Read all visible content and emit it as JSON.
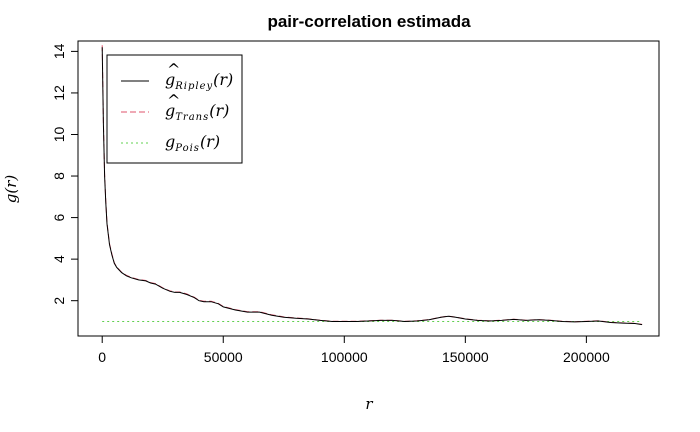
{
  "chart_data": {
    "type": "line",
    "title": "pair-correlation estimada",
    "xlabel": "r",
    "ylabel": "g(r)",
    "xlim": [
      -10000,
      230000
    ],
    "ylim": [
      0.3,
      14.5
    ],
    "x_ticks": [
      0,
      50000,
      100000,
      150000,
      200000
    ],
    "y_ticks": [
      2,
      4,
      6,
      8,
      10,
      12,
      14
    ],
    "x_tick_labels": [
      "0",
      "50000",
      "100000",
      "150000",
      "200000"
    ],
    "y_tick_labels": [
      "2",
      "4",
      "6",
      "8",
      "10",
      "12",
      "14"
    ],
    "grid": false,
    "legend_position": "top-left",
    "legend": [
      {
        "hat": "^",
        "symbol": "g",
        "sub": "Ripley",
        "arg": "(r)"
      },
      {
        "hat": "^",
        "symbol": "g",
        "sub": "Trans",
        "arg": "(r)"
      },
      {
        "hat": "",
        "symbol": "g",
        "sub": "Pois",
        "arg": "(r)"
      }
    ],
    "series": [
      {
        "id": "ripley",
        "color": "#000000",
        "style": "solid",
        "x": [
          0,
          500,
          1000,
          1500,
          2000,
          3000,
          4000,
          5000,
          6000,
          8000,
          10000,
          12000,
          15000,
          18000,
          20000,
          22000,
          25000,
          28000,
          30000,
          32000,
          35000,
          38000,
          40000,
          42000,
          45000,
          48000,
          50000,
          55000,
          60000,
          65000,
          70000,
          75000,
          80000,
          85000,
          90000,
          95000,
          100000,
          105000,
          110000,
          115000,
          120000,
          125000,
          130000,
          135000,
          140000,
          143000,
          146000,
          150000,
          155000,
          160000,
          165000,
          170000,
          175000,
          180000,
          185000,
          190000,
          195000,
          200000,
          205000,
          210000,
          215000,
          220000,
          223000
        ],
        "y": [
          14.2,
          10.5,
          8.0,
          6.7,
          5.7,
          4.7,
          4.2,
          3.8,
          3.6,
          3.35,
          3.2,
          3.1,
          3.0,
          2.95,
          2.85,
          2.8,
          2.6,
          2.45,
          2.4,
          2.4,
          2.3,
          2.15,
          2.0,
          1.95,
          1.95,
          1.85,
          1.7,
          1.55,
          1.45,
          1.45,
          1.3,
          1.2,
          1.15,
          1.12,
          1.05,
          1.0,
          1.0,
          1.0,
          1.02,
          1.05,
          1.05,
          1.0,
          1.02,
          1.08,
          1.2,
          1.25,
          1.2,
          1.12,
          1.05,
          1.02,
          1.05,
          1.1,
          1.05,
          1.08,
          1.05,
          1.0,
          0.98,
          1.0,
          1.02,
          0.95,
          0.92,
          0.9,
          0.85
        ]
      },
      {
        "id": "trans",
        "color": "#df536b",
        "style": "dashed",
        "x": [
          0,
          500,
          1000,
          1500,
          2000,
          3000,
          4000,
          5000,
          6000,
          8000,
          10000,
          12000,
          15000,
          18000,
          20000,
          22000,
          25000,
          28000,
          30000,
          32000,
          35000,
          38000,
          40000,
          42000,
          45000,
          48000,
          50000,
          55000,
          60000,
          65000,
          70000,
          75000,
          80000,
          85000,
          90000,
          95000,
          100000,
          105000,
          110000,
          115000,
          120000,
          125000,
          130000,
          135000,
          140000,
          143000,
          146000,
          150000,
          155000,
          160000,
          165000,
          170000,
          175000,
          180000,
          185000,
          190000,
          195000,
          200000,
          205000,
          210000,
          215000,
          220000,
          223000
        ],
        "y": [
          14.3,
          10.6,
          8.1,
          6.8,
          5.75,
          4.75,
          4.25,
          3.82,
          3.62,
          3.37,
          3.22,
          3.12,
          3.02,
          2.97,
          2.87,
          2.82,
          2.62,
          2.47,
          2.42,
          2.42,
          2.32,
          2.17,
          2.02,
          1.97,
          1.97,
          1.87,
          1.72,
          1.57,
          1.47,
          1.47,
          1.32,
          1.22,
          1.17,
          1.13,
          1.06,
          1.01,
          1.01,
          1.01,
          1.03,
          1.06,
          1.06,
          1.01,
          1.03,
          1.09,
          1.21,
          1.26,
          1.21,
          1.13,
          1.06,
          1.03,
          1.06,
          1.11,
          1.06,
          1.09,
          1.06,
          1.01,
          0.99,
          1.01,
          1.03,
          0.96,
          0.93,
          0.91,
          0.86
        ]
      },
      {
        "id": "pois",
        "color": "#61d04f",
        "style": "dotted",
        "x": [
          0,
          223000
        ],
        "y": [
          1,
          1
        ]
      }
    ]
  }
}
